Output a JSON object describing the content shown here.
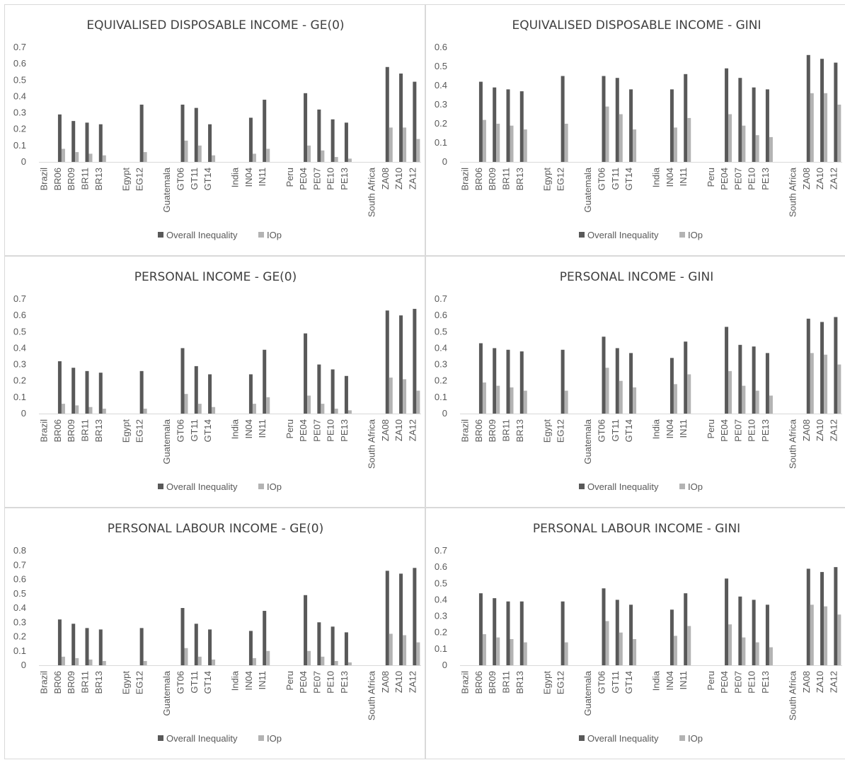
{
  "colors": {
    "overall": "#595959",
    "iop": "#b3b3b3",
    "axis": "#d9d9d9",
    "text": "#595959"
  },
  "chart_data": [
    {
      "type": "bar",
      "title": "EQUIVALISED DISPOSABLE INCOME - GE(0)",
      "categories": [
        "Brazil",
        "BR06",
        "BR09",
        "BR11",
        "BR13",
        "",
        "Egypt",
        "EG12",
        "",
        "Guatemala",
        "GT06",
        "GT11",
        "GT14",
        "",
        "India",
        "IN04",
        "IN11",
        "",
        "Peru",
        "PE04",
        "PE07",
        "PE10",
        "PE13",
        "",
        "South Africa",
        "ZA08",
        "ZA10",
        "ZA12"
      ],
      "ylim": [
        0,
        0.7
      ],
      "yticks": [
        "0",
        "0.1",
        "0.2",
        "0.3",
        "0.4",
        "0.5",
        "0.6",
        "0.7"
      ],
      "series": [
        {
          "name": "Overall Inequality",
          "values": [
            null,
            0.29,
            0.25,
            0.24,
            0.23,
            null,
            null,
            0.35,
            null,
            null,
            0.35,
            0.33,
            0.23,
            null,
            null,
            0.27,
            0.38,
            null,
            null,
            0.42,
            0.32,
            0.26,
            0.24,
            null,
            null,
            0.58,
            0.54,
            0.49
          ]
        },
        {
          "name": "IOp",
          "values": [
            null,
            0.08,
            0.06,
            0.05,
            0.04,
            null,
            null,
            0.06,
            null,
            null,
            0.13,
            0.1,
            0.04,
            null,
            null,
            0.05,
            0.08,
            null,
            null,
            0.1,
            0.07,
            0.03,
            0.02,
            null,
            null,
            0.21,
            0.21,
            0.14
          ]
        }
      ],
      "legend": "bottom"
    },
    {
      "type": "bar",
      "title": "EQUIVALISED DISPOSABLE INCOME - GINI",
      "categories": [
        "Brazil",
        "BR06",
        "BR09",
        "BR11",
        "BR13",
        "",
        "Egypt",
        "EG12",
        "",
        "Guatemala",
        "GT06",
        "GT11",
        "GT14",
        "",
        "India",
        "IN04",
        "IN11",
        "",
        "Peru",
        "PE04",
        "PE07",
        "PE10",
        "PE13",
        "",
        "South Africa",
        "ZA08",
        "ZA10",
        "ZA12"
      ],
      "ylim": [
        0,
        0.6
      ],
      "yticks": [
        "0",
        "0.1",
        "0.2",
        "0.3",
        "0.4",
        "0.5",
        "0.6"
      ],
      "series": [
        {
          "name": "Overall Inequality",
          "values": [
            null,
            0.42,
            0.39,
            0.38,
            0.37,
            null,
            null,
            0.45,
            null,
            null,
            0.45,
            0.44,
            0.38,
            null,
            null,
            0.38,
            0.46,
            null,
            null,
            0.49,
            0.44,
            0.39,
            0.38,
            null,
            null,
            0.56,
            0.54,
            0.52
          ]
        },
        {
          "name": "IOp",
          "values": [
            null,
            0.22,
            0.2,
            0.19,
            0.17,
            null,
            null,
            0.2,
            null,
            null,
            0.29,
            0.25,
            0.17,
            null,
            null,
            0.18,
            0.23,
            null,
            null,
            0.25,
            0.19,
            0.14,
            0.13,
            null,
            null,
            0.36,
            0.36,
            0.3
          ]
        }
      ],
      "legend": "bottom"
    },
    {
      "type": "bar",
      "title": "PERSONAL INCOME - GE(0)",
      "categories": [
        "Brazil",
        "BR06",
        "BR09",
        "BR11",
        "BR13",
        "",
        "Egypt",
        "EG12",
        "",
        "Guatemala",
        "GT06",
        "GT11",
        "GT14",
        "",
        "India",
        "IN04",
        "IN11",
        "",
        "Peru",
        "PE04",
        "PE07",
        "PE10",
        "PE13",
        "",
        "South Africa",
        "ZA08",
        "ZA10",
        "ZA12"
      ],
      "ylim": [
        0,
        0.7
      ],
      "yticks": [
        "0",
        "0.1",
        "0.2",
        "0.3",
        "0.4",
        "0.5",
        "0.6",
        "0.7"
      ],
      "series": [
        {
          "name": "Overall Inequality",
          "values": [
            null,
            0.32,
            0.28,
            0.26,
            0.25,
            null,
            null,
            0.26,
            null,
            null,
            0.4,
            0.29,
            0.24,
            null,
            null,
            0.24,
            0.39,
            null,
            null,
            0.49,
            0.3,
            0.27,
            0.23,
            null,
            null,
            0.63,
            0.6,
            0.64
          ]
        },
        {
          "name": "IOp",
          "values": [
            null,
            0.06,
            0.05,
            0.04,
            0.03,
            null,
            null,
            0.03,
            null,
            null,
            0.12,
            0.06,
            0.04,
            null,
            null,
            0.06,
            0.1,
            null,
            null,
            0.11,
            0.06,
            0.03,
            0.02,
            null,
            null,
            0.22,
            0.21,
            0.14
          ]
        }
      ],
      "legend": "bottom"
    },
    {
      "type": "bar",
      "title": "PERSONAL INCOME - GINI",
      "categories": [
        "Brazil",
        "BR06",
        "BR09",
        "BR11",
        "BR13",
        "",
        "Egypt",
        "EG12",
        "",
        "Guatemala",
        "GT06",
        "GT11",
        "GT14",
        "",
        "India",
        "IN04",
        "IN11",
        "",
        "Peru",
        "PE04",
        "PE07",
        "PE10",
        "PE13",
        "",
        "South Africa",
        "ZA08",
        "ZA10",
        "ZA12"
      ],
      "ylim": [
        0,
        0.7
      ],
      "yticks": [
        "0",
        "0.1",
        "0.2",
        "0.3",
        "0.4",
        "0.5",
        "0.6",
        "0.7"
      ],
      "series": [
        {
          "name": "Overall Inequality",
          "values": [
            null,
            0.43,
            0.4,
            0.39,
            0.38,
            null,
            null,
            0.39,
            null,
            null,
            0.47,
            0.4,
            0.37,
            null,
            null,
            0.34,
            0.44,
            null,
            null,
            0.53,
            0.42,
            0.41,
            0.37,
            null,
            null,
            0.58,
            0.56,
            0.59
          ]
        },
        {
          "name": "IOp",
          "values": [
            null,
            0.19,
            0.17,
            0.16,
            0.14,
            null,
            null,
            0.14,
            null,
            null,
            0.28,
            0.2,
            0.16,
            null,
            null,
            0.18,
            0.24,
            null,
            null,
            0.26,
            0.17,
            0.14,
            0.11,
            null,
            null,
            0.37,
            0.36,
            0.3
          ]
        }
      ],
      "legend": "bottom"
    },
    {
      "type": "bar",
      "title": "PERSONAL LABOUR INCOME - GE(0)",
      "categories": [
        "Brazil",
        "BR06",
        "BR09",
        "BR11",
        "BR13",
        "",
        "Egypt",
        "EG12",
        "",
        "Guatemala",
        "GT06",
        "GT11",
        "GT14",
        "",
        "India",
        "IN04",
        "IN11",
        "",
        "Peru",
        "PE04",
        "PE07",
        "PE10",
        "PE13",
        "",
        "South Africa",
        "ZA08",
        "ZA10",
        "ZA12"
      ],
      "ylim": [
        0,
        0.8
      ],
      "yticks": [
        "0",
        "0.1",
        "0.2",
        "0.3",
        "0.4",
        "0.5",
        "0.6",
        "0.7",
        "0.8"
      ],
      "series": [
        {
          "name": "Overall Inequality",
          "values": [
            null,
            0.32,
            0.29,
            0.26,
            0.25,
            null,
            null,
            0.26,
            null,
            null,
            0.4,
            0.29,
            0.25,
            null,
            null,
            0.24,
            0.38,
            null,
            null,
            0.49,
            0.3,
            0.27,
            0.23,
            null,
            null,
            0.66,
            0.64,
            0.68
          ]
        },
        {
          "name": "IOp",
          "values": [
            null,
            0.06,
            0.05,
            0.04,
            0.03,
            null,
            null,
            0.03,
            null,
            null,
            0.12,
            0.06,
            0.04,
            null,
            null,
            0.05,
            0.1,
            null,
            null,
            0.1,
            0.06,
            0.03,
            0.02,
            null,
            null,
            0.22,
            0.21,
            0.16
          ]
        }
      ],
      "legend": "bottom"
    },
    {
      "type": "bar",
      "title": "PERSONAL LABOUR INCOME - GINI",
      "categories": [
        "Brazil",
        "BR06",
        "BR09",
        "BR11",
        "BR13",
        "",
        "Egypt",
        "EG12",
        "",
        "Guatemala",
        "GT06",
        "GT11",
        "GT14",
        "",
        "India",
        "IN04",
        "IN11",
        "",
        "Peru",
        "PE04",
        "PE07",
        "PE10",
        "PE13",
        "",
        "South Africa",
        "ZA08",
        "ZA10",
        "ZA12"
      ],
      "ylim": [
        0,
        0.7
      ],
      "yticks": [
        "0",
        "0.1",
        "0.2",
        "0.3",
        "0.4",
        "0.5",
        "0.6",
        "0.7"
      ],
      "series": [
        {
          "name": "Overall Inequality",
          "values": [
            null,
            0.44,
            0.41,
            0.39,
            0.39,
            null,
            null,
            0.39,
            null,
            null,
            0.47,
            0.4,
            0.37,
            null,
            null,
            0.34,
            0.44,
            null,
            null,
            0.53,
            0.42,
            0.4,
            0.37,
            null,
            null,
            0.59,
            0.57,
            0.6
          ]
        },
        {
          "name": "IOp",
          "values": [
            null,
            0.19,
            0.17,
            0.16,
            0.14,
            null,
            null,
            0.14,
            null,
            null,
            0.27,
            0.2,
            0.16,
            null,
            null,
            0.18,
            0.24,
            null,
            null,
            0.25,
            0.17,
            0.14,
            0.11,
            null,
            null,
            0.37,
            0.36,
            0.31
          ]
        }
      ],
      "legend": "bottom"
    }
  ]
}
